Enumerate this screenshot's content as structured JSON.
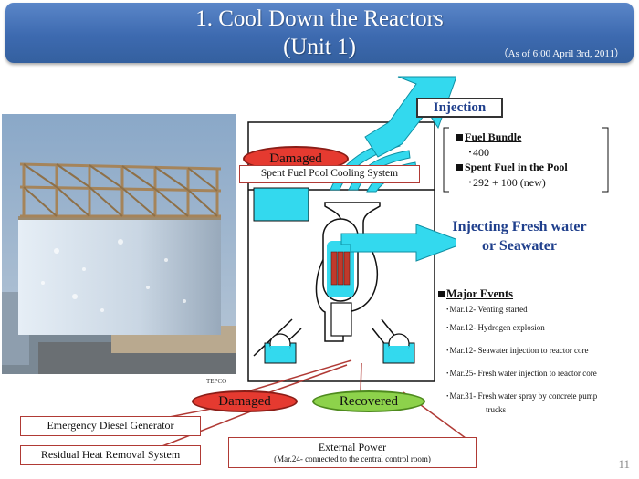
{
  "header": {
    "title_line1": "1. Cool Down the Reactors",
    "title_line2": "(Unit 1)",
    "as_of": "（As of 6:00 April 3rd, 2011）"
  },
  "photo": {
    "credit": "TEPCO"
  },
  "diagram": {
    "injection_label": "Injection",
    "damaged_top": "Damaged",
    "spent_fuel_pool_system": "Spent Fuel Pool Cooling System",
    "injecting_line1": "Injecting  Fresh water",
    "injecting_line2": "or Seawater"
  },
  "fuel_info": {
    "fuel_bundle_heading": "Fuel Bundle",
    "fuel_bundle_value": "･400",
    "spent_fuel_heading": "Spent Fuel in the Pool",
    "spent_fuel_value": "･292 + 100 (new)"
  },
  "major_events": {
    "heading": "Major Events",
    "items": [
      "･Mar.12- Venting started",
      "･Mar.12- Hydrogen explosion",
      "･Mar.12- Seawater injection to reactor core",
      "･Mar.25- Fresh water injection to reactor core",
      "･Mar.31- Fresh water spray by concrete pump",
      "trucks"
    ]
  },
  "status": {
    "damaged": "Damaged",
    "recovered": "Recovered",
    "emergency_diesel": "Emergency Diesel Generator",
    "residual_heat": "Residual Heat Removal System",
    "external_power": "External Power",
    "external_power_note": "(Mar.24- connected to the central control room)"
  },
  "page_number": "11",
  "colors": {
    "banner": "#3d6ab0",
    "water": "#33d9ee",
    "damaged": "#e53a30",
    "recovered": "#8dd24b",
    "label_border": "#b03a35",
    "text_blue": "#1f3f8c"
  }
}
